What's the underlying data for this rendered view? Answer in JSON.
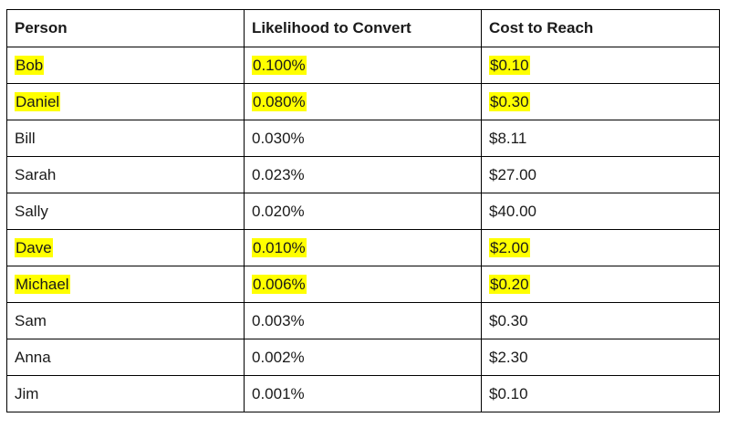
{
  "table": {
    "headers": [
      "Person",
      "Likelihood to Convert",
      "Cost to Reach"
    ],
    "rows": [
      {
        "person": "Bob",
        "likelihood": "0.100%",
        "cost": "$0.10",
        "highlighted": true
      },
      {
        "person": "Daniel",
        "likelihood": "0.080%",
        "cost": "$0.30",
        "highlighted": true
      },
      {
        "person": "Bill",
        "likelihood": "0.030%",
        "cost": "$8.11",
        "highlighted": false
      },
      {
        "person": "Sarah",
        "likelihood": "0.023%",
        "cost": "$27.00",
        "highlighted": false
      },
      {
        "person": "Sally",
        "likelihood": "0.020%",
        "cost": "$40.00",
        "highlighted": false
      },
      {
        "person": "Dave",
        "likelihood": "0.010%",
        "cost": "$2.00",
        "highlighted": true
      },
      {
        "person": "Michael",
        "likelihood": "0.006%",
        "cost": "$0.20",
        "highlighted": true
      },
      {
        "person": "Sam",
        "likelihood": "0.003%",
        "cost": "$0.30",
        "highlighted": false
      },
      {
        "person": "Anna",
        "likelihood": "0.002%",
        "cost": "$2.30",
        "highlighted": false
      },
      {
        "person": "Jim",
        "likelihood": "0.001%",
        "cost": "$0.10",
        "highlighted": false
      }
    ]
  },
  "colors": {
    "highlight": "#ffff00",
    "border": "#000000"
  }
}
